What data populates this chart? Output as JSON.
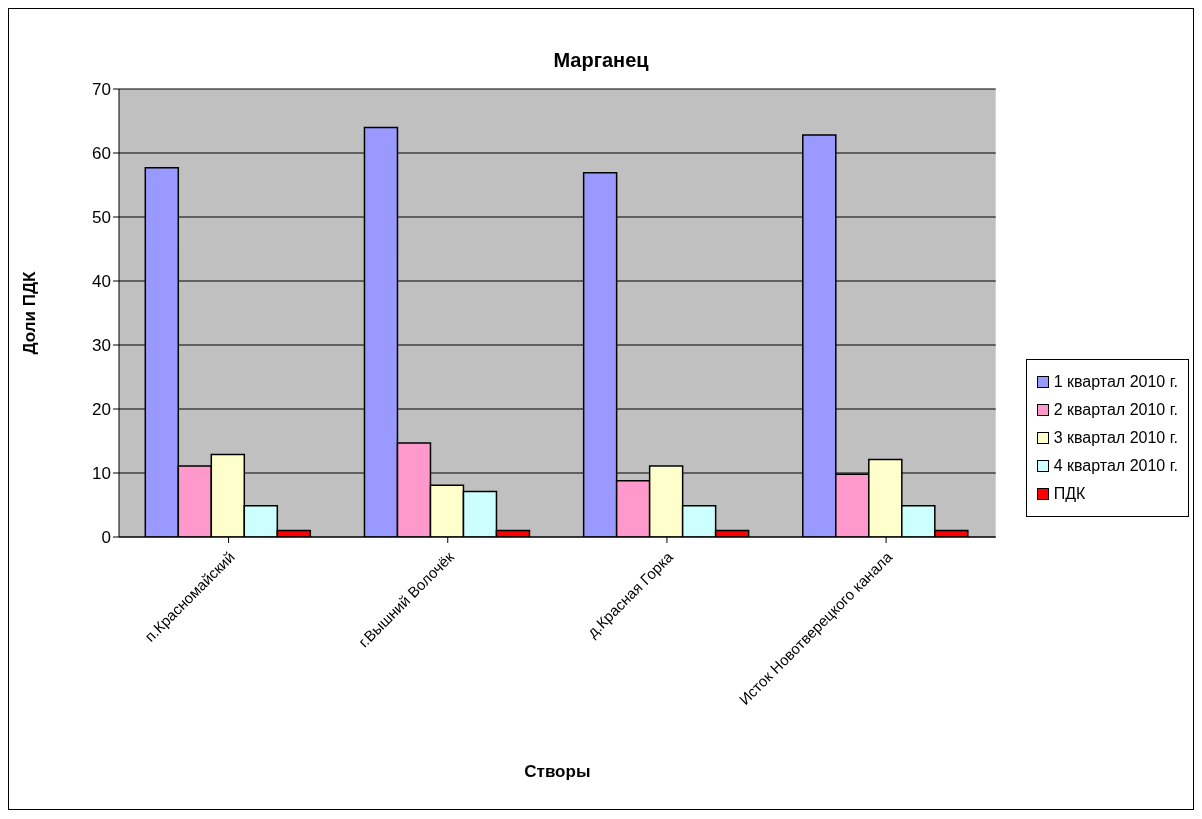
{
  "chart_data": {
    "type": "bar",
    "title": "Марганец",
    "xlabel": "Створы",
    "ylabel": "Доли ПДК",
    "categories": [
      "п.Красномайский",
      "г.Вышний Волочёк",
      "д.Красная Горка",
      "Исток Новотверецкого канала"
    ],
    "series": [
      {
        "name": "1 квартал 2010 г.",
        "color": "#9999ff",
        "values": [
          57.7,
          64.0,
          56.9,
          62.8
        ]
      },
      {
        "name": "2 квартал 2010 г.",
        "color": "#ff99cc",
        "values": [
          11.1,
          14.7,
          8.8,
          9.8
        ]
      },
      {
        "name": "3 квартал 2010 г.",
        "color": "#ffffcc",
        "values": [
          12.9,
          8.1,
          11.1,
          12.1
        ]
      },
      {
        "name": "4 квартал 2010 г.",
        "color": "#ccffff",
        "values": [
          4.9,
          7.1,
          4.9,
          4.9
        ]
      },
      {
        "name": "ПДК",
        "color": "#ff0000",
        "values": [
          1,
          1,
          1,
          1
        ]
      }
    ],
    "ylim": [
      0,
      70
    ],
    "yticks": [
      0,
      10,
      20,
      30,
      40,
      50,
      60,
      70
    ],
    "grid": "y",
    "legend": "right"
  }
}
